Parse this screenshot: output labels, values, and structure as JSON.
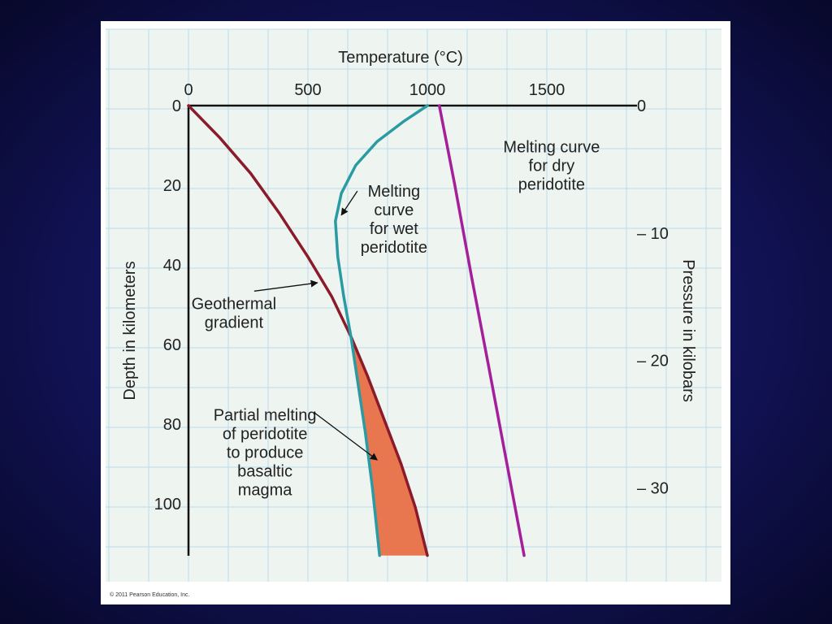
{
  "chart_data": {
    "type": "line",
    "title": "Temperature (°C)",
    "xlabel": "Temperature (°C)",
    "ylabel": "Depth in kilometers",
    "y2label": "Pressure in kilobars",
    "xlim": [
      0,
      1900
    ],
    "ylim": [
      0,
      113
    ],
    "x_ticks": [
      0,
      500,
      1000,
      1500
    ],
    "y_ticks": [
      0,
      20,
      40,
      60,
      80,
      100
    ],
    "y2_ticks": [
      0,
      10,
      20,
      30
    ],
    "y2_tick_labels": [
      "0",
      "– 10",
      "– 20",
      "– 30"
    ],
    "y2_depth_per_kbar": 3.2,
    "grid": true,
    "series": [
      {
        "name": "Geothermal gradient",
        "color": "#8b1a2a",
        "x": [
          0,
          130,
          260,
          380,
          500,
          600,
          680,
          750,
          820,
          890,
          950,
          1000
        ],
        "y": [
          0,
          8,
          17,
          27,
          38,
          48,
          58,
          68,
          79,
          90,
          101,
          113
        ]
      },
      {
        "name": "Melting curve for wet peridotite",
        "color": "#2a9aa3",
        "x": [
          1000,
          900,
          790,
          700,
          640,
          615,
          625,
          650,
          680,
          710,
          740,
          770,
          800
        ],
        "y": [
          0,
          4,
          9,
          15,
          22,
          29,
          38,
          48,
          58,
          70,
          82,
          96,
          113
        ]
      },
      {
        "name": "Melting curve for dry peridotite",
        "color": "#a3209a",
        "x": [
          1050,
          1115,
          1185,
          1255,
          1330,
          1405
        ],
        "y": [
          0,
          20,
          43,
          65,
          89,
          113
        ]
      }
    ],
    "shaded_region": {
      "name": "Partial melting of peridotite to produce basaltic magma",
      "color": "#e8764e",
      "between": [
        "Geothermal gradient",
        "Melting curve for wet peridotite"
      ],
      "y_range": [
        58,
        113
      ]
    },
    "annotations": [
      {
        "id": "wet",
        "lines": [
          "Melting",
          "curve",
          "for wet",
          "peridotite"
        ],
        "x": 860,
        "y": 28.5,
        "arrow_to": [
          640,
          27.5
        ]
      },
      {
        "id": "dry",
        "lines": [
          "Melting curve",
          "for dry",
          "peridotite"
        ],
        "x": 1520,
        "y": 15,
        "arrow_to": null
      },
      {
        "id": "geo",
        "lines": [
          "Geothermal",
          "gradient"
        ],
        "x": 190,
        "y": 52,
        "arrow_to": [
          540,
          44.5
        ]
      },
      {
        "id": "partial",
        "lines": [
          "Partial melting",
          "of peridotite",
          "to produce",
          "basaltic",
          "magma"
        ],
        "x": 320,
        "y": 87,
        "arrow_to": [
          790,
          89
        ]
      }
    ]
  },
  "copyright": "© 2011 Pearson Education, Inc."
}
